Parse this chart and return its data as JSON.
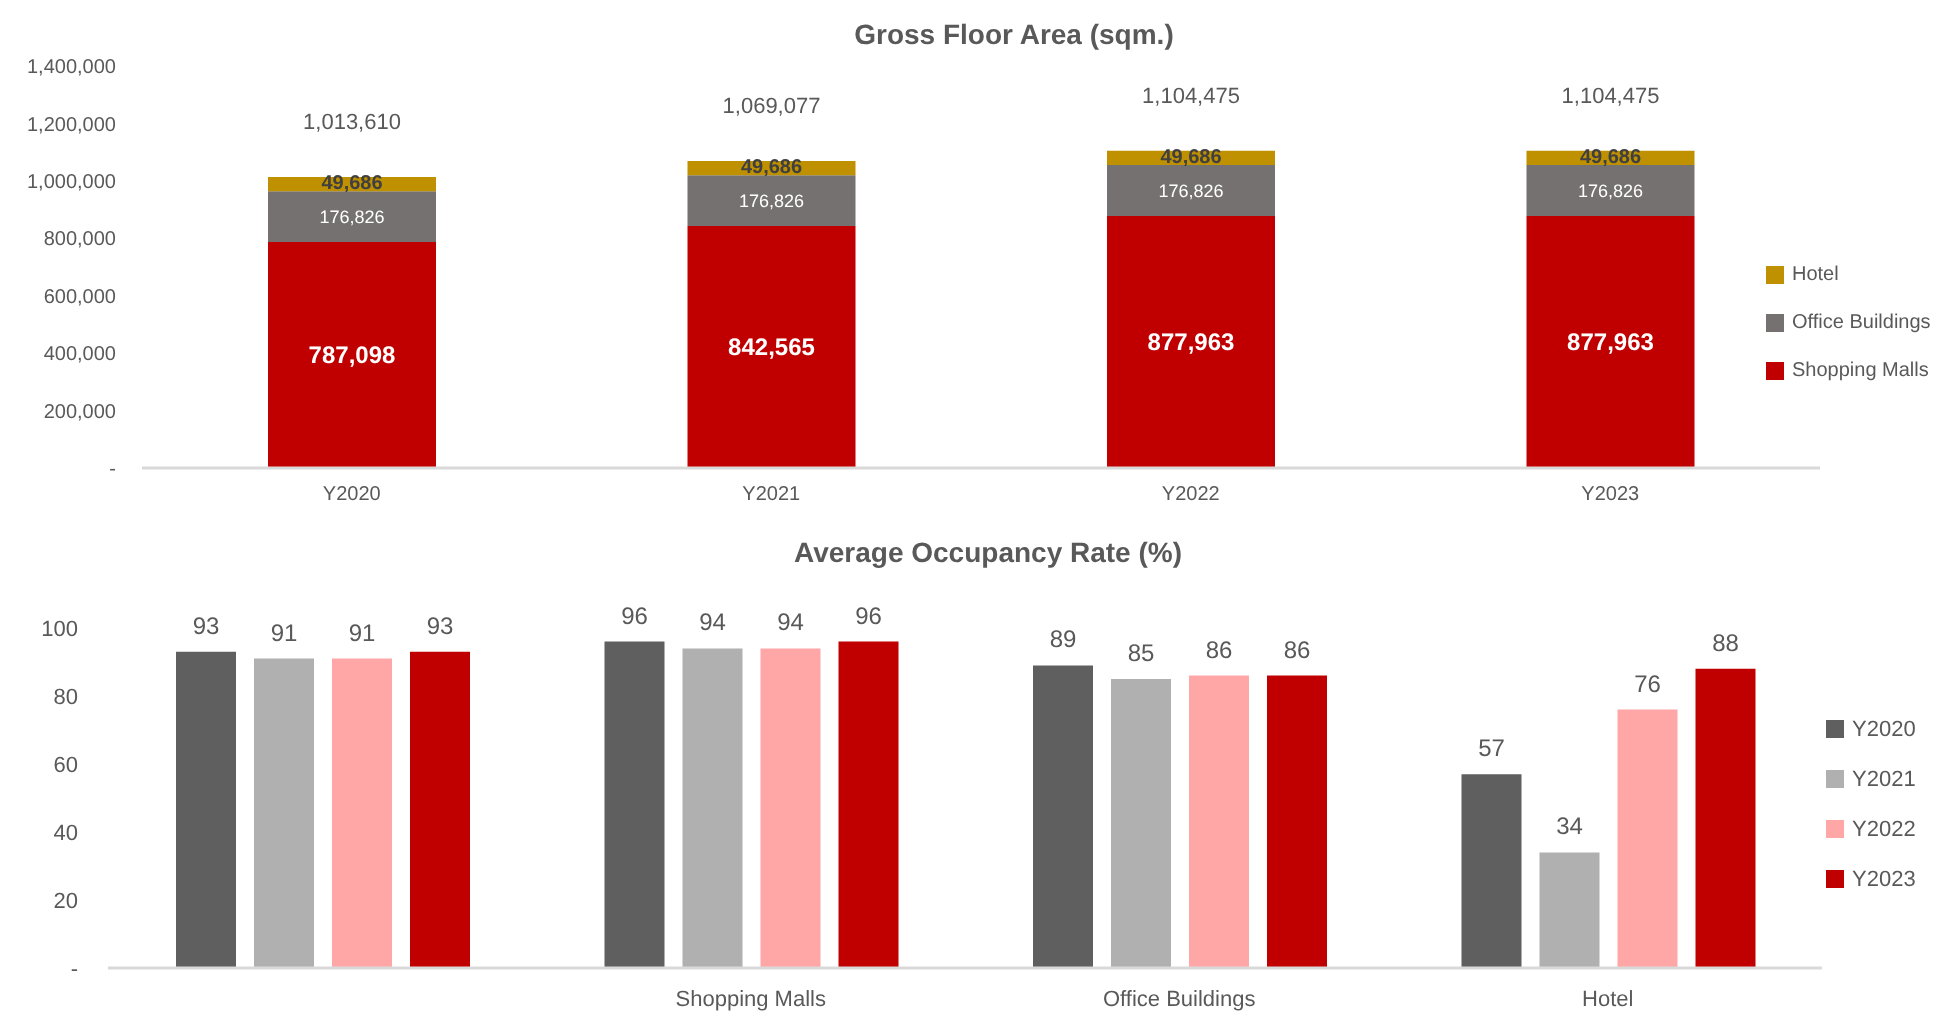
{
  "chart_data": [
    {
      "type": "bar",
      "title": "Gross Floor Area (sqm.)",
      "categories": [
        "Y2020",
        "Y2021",
        "Y2022",
        "Y2023"
      ],
      "stacked": true,
      "series": [
        {
          "name": "Shopping Malls",
          "color": "#c00000",
          "values": [
            787098,
            842565,
            877963,
            877963
          ],
          "value_labels": [
            "787,098",
            "842,565",
            "877,963",
            "877,963"
          ]
        },
        {
          "name": "Office Buildings",
          "color": "#767171",
          "values": [
            176826,
            176826,
            176826,
            176826
          ],
          "value_labels": [
            "176,826",
            "176,826",
            "176,826",
            "176,826"
          ]
        },
        {
          "name": "Hotel",
          "color": "#bf9000",
          "values": [
            49686,
            49686,
            49686,
            49686
          ],
          "value_labels": [
            "49,686",
            "49,686",
            "49,686",
            "49,686"
          ]
        }
      ],
      "totals": [
        "1,013,610",
        "1,069,077",
        "1,104,475",
        "1,104,475"
      ],
      "ylim": [
        0,
        1400000
      ],
      "yticks": [
        {
          "value": 0,
          "label": "-"
        },
        {
          "value": 200000,
          "label": "200,000"
        },
        {
          "value": 400000,
          "label": "400,000"
        },
        {
          "value": 600000,
          "label": "600,000"
        },
        {
          "value": 800000,
          "label": "800,000"
        },
        {
          "value": 1000000,
          "label": "1,000,000"
        },
        {
          "value": 1200000,
          "label": "1,200,000"
        },
        {
          "value": 1400000,
          "label": "1,400,000"
        }
      ],
      "legend": "right"
    },
    {
      "type": "bar",
      "title": "Average Occupancy Rate (%)",
      "categories": [
        null,
        "Shopping Malls",
        "Office Buildings",
        "Hotel"
      ],
      "series": [
        {
          "name": "Y2020",
          "color": "#5f5f5f",
          "values": [
            93,
            96,
            89,
            57
          ]
        },
        {
          "name": "Y2021",
          "color": "#b0b0b0",
          "values": [
            91,
            94,
            85,
            34
          ]
        },
        {
          "name": "Y2022",
          "color": "#ffa7a7",
          "values": [
            91,
            94,
            86,
            76
          ]
        },
        {
          "name": "Y2023",
          "color": "#c00000",
          "values": [
            93,
            96,
            86,
            88
          ]
        }
      ],
      "ylim": [
        0,
        100
      ],
      "yticks": [
        {
          "value": 0,
          "label": "-"
        },
        20,
        40,
        60,
        80,
        100
      ],
      "data_labels": true,
      "legend": "right"
    }
  ]
}
